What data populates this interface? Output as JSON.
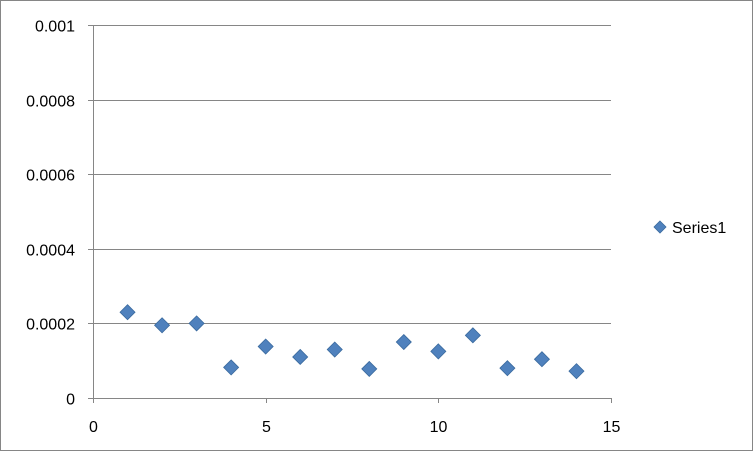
{
  "chart_data": {
    "type": "scatter",
    "title": "",
    "xlabel": "",
    "ylabel": "",
    "xlim": [
      0,
      15
    ],
    "ylim": [
      0,
      0.001
    ],
    "x_ticks": [
      "0",
      "5",
      "10",
      "15"
    ],
    "y_ticks": [
      "0",
      "0.0002",
      "0.0004",
      "0.0006",
      "0.0008",
      "0.001"
    ],
    "grid": "horizontal",
    "legend_position": "right",
    "marker": "diamond",
    "color": "#4F81BD",
    "series": [
      {
        "name": "Series1",
        "x": [
          1,
          2,
          3,
          4,
          5,
          6,
          7,
          8,
          9,
          10,
          11,
          12,
          13,
          14
        ],
        "y": [
          0.00023,
          0.000195,
          0.0002,
          8.2e-05,
          0.000138,
          0.00011,
          0.00013,
          7.8e-05,
          0.00015,
          0.000125,
          0.000168,
          8e-05,
          0.000104,
          7.2e-05
        ]
      }
    ]
  }
}
